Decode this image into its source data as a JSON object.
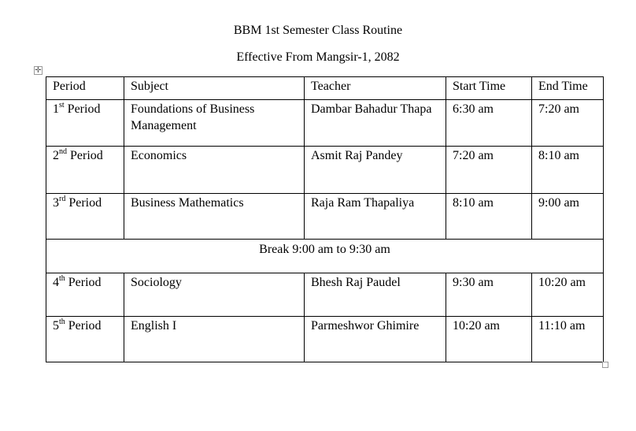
{
  "document": {
    "title": "BBM 1st Semester Class Routine",
    "subtitle": "Effective From Mangsir-1, 2082"
  },
  "table": {
    "headers": [
      "Period",
      "Subject",
      "Teacher",
      "Start Time",
      "End Time"
    ],
    "rows": [
      {
        "num": "1",
        "suffix": "st",
        "period": " Period",
        "subject": "Foundations of Business Management",
        "teacher": "Dambar Bahadur Thapa",
        "start": "6:30 am",
        "end": "7:20 am"
      },
      {
        "num": "2",
        "suffix": "nd",
        "period": " Period",
        "subject": "Economics",
        "teacher": "Asmit Raj Pandey",
        "start": "7:20 am",
        "end": "8:10 am"
      },
      {
        "num": "3",
        "suffix": "rd",
        "period": " Period",
        "subject": "Business Mathematics",
        "teacher": "Raja Ram Thapaliya",
        "start": "8:10 am",
        "end": "9:00 am"
      },
      {
        "num": "4",
        "suffix": "th",
        "period": " Period",
        "subject": "Sociology",
        "teacher": "Bhesh Raj Paudel",
        "start": "9:30 am",
        "end": "10:20 am"
      },
      {
        "num": "5",
        "suffix": "th",
        "period": " Period",
        "subject": "English I",
        "teacher": "Parmeshwor Ghimire",
        "start": "10:20 am",
        "end": "11:10 am"
      }
    ],
    "break": "Break 9:00 am to 9:30 am"
  },
  "icons": {
    "move_handle": "move-icon",
    "resize_handle": "resize-handle"
  }
}
